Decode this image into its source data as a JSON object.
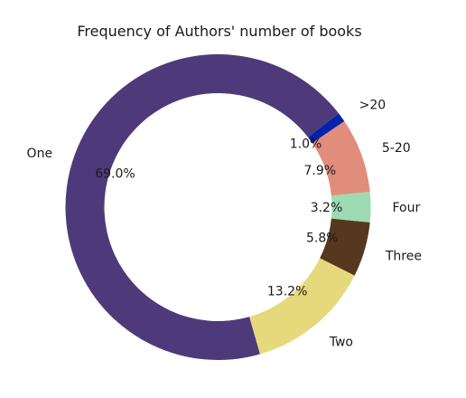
{
  "chart_data": {
    "type": "pie",
    "title": "Frequency of Authors' number of books",
    "donut": true,
    "start_angle_deg": 37.8,
    "direction": "counterclockwise",
    "slices": [
      {
        "label": "One",
        "value": 69.0,
        "pct_text": "69.0%",
        "color": "#4e3a7a"
      },
      {
        "label": "Two",
        "value": 13.2,
        "pct_text": "13.2%",
        "color": "#e6d97c"
      },
      {
        "label": "Three",
        "value": 5.8,
        "pct_text": "5.8%",
        "color": "#56381f"
      },
      {
        "label": "Four",
        "value": 3.2,
        "pct_text": "3.2%",
        "color": "#9ddbb2"
      },
      {
        "label": "5-20",
        "value": 7.9,
        "pct_text": "7.9%",
        "color": "#e08d7c"
      },
      {
        "label": ">20",
        "value": 1.0,
        "pct_text": "1.0%",
        "color": "#0023a8"
      }
    ]
  }
}
